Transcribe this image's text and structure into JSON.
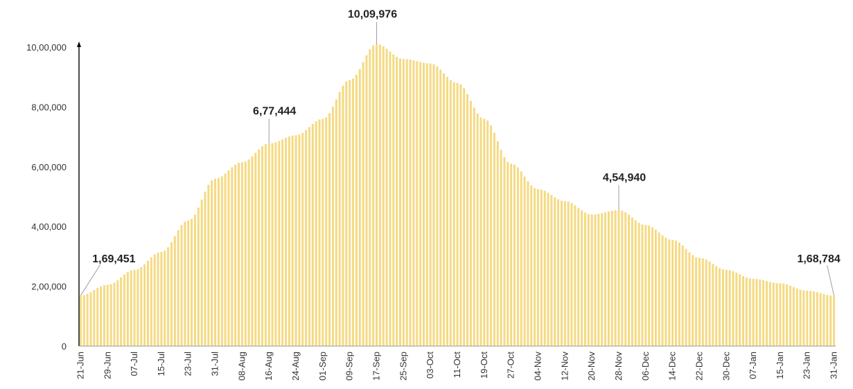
{
  "chart_data": {
    "type": "bar",
    "title": "",
    "xlabel": "",
    "ylabel": "",
    "ylim": [
      0,
      1000000
    ],
    "grid": false,
    "legend": "none",
    "colors": {
      "bar": "#F5DA83",
      "bar_edge": "#E8C65C",
      "axis": "#000000",
      "leader_line": "#9E9E9E"
    },
    "y_ticks": [
      {
        "value": 0,
        "label": "0"
      },
      {
        "value": 200000,
        "label": "2,00,000"
      },
      {
        "value": 400000,
        "label": "4,00,000"
      },
      {
        "value": 600000,
        "label": "6,00,000"
      },
      {
        "value": 800000,
        "label": "8,00,000"
      },
      {
        "value": 1000000,
        "label": "10,00,000"
      }
    ],
    "start_date": "21-Jun",
    "end_date": "31-Jan",
    "x_tick_labels": [
      "21-Jun",
      "29-Jun",
      "07-Jul",
      "15-Jul",
      "23-Jul",
      "31-Jul",
      "08-Aug",
      "16-Aug",
      "24-Aug",
      "01-Sep",
      "09-Sep",
      "17-Sep",
      "25-Sep",
      "03-Oct",
      "11-Oct",
      "19-Oct",
      "27-Oct",
      "04-Nov",
      "12-Nov",
      "20-Nov",
      "28-Nov",
      "06-Dec",
      "14-Dec",
      "22-Dec",
      "30-Dec",
      "07-Jan",
      "15-Jan",
      "23-Jan",
      "31-Jan"
    ],
    "profile": [
      {
        "date": "21-Jun",
        "value": 169451
      },
      {
        "date": "29-Jun",
        "value": 205000
      },
      {
        "date": "07-Jul",
        "value": 255000
      },
      {
        "date": "15-Jul",
        "value": 315000
      },
      {
        "date": "23-Jul",
        "value": 420000
      },
      {
        "date": "31-Jul",
        "value": 560000
      },
      {
        "date": "08-Aug",
        "value": 615000
      },
      {
        "date": "16-Aug",
        "value": 677444
      },
      {
        "date": "24-Aug",
        "value": 705000
      },
      {
        "date": "01-Sep",
        "value": 760000
      },
      {
        "date": "09-Sep",
        "value": 890000
      },
      {
        "date": "17-Sep",
        "value": 1009976
      },
      {
        "date": "25-Sep",
        "value": 960000
      },
      {
        "date": "03-Oct",
        "value": 945000
      },
      {
        "date": "11-Oct",
        "value": 880000
      },
      {
        "date": "19-Oct",
        "value": 760000
      },
      {
        "date": "27-Oct",
        "value": 610000
      },
      {
        "date": "04-Nov",
        "value": 525000
      },
      {
        "date": "12-Nov",
        "value": 485000
      },
      {
        "date": "20-Nov",
        "value": 440000
      },
      {
        "date": "28-Nov",
        "value": 454940
      },
      {
        "date": "06-Dec",
        "value": 405000
      },
      {
        "date": "14-Dec",
        "value": 355000
      },
      {
        "date": "22-Dec",
        "value": 295000
      },
      {
        "date": "30-Dec",
        "value": 255000
      },
      {
        "date": "07-Jan",
        "value": 225000
      },
      {
        "date": "15-Jan",
        "value": 210000
      },
      {
        "date": "23-Jan",
        "value": 185000
      },
      {
        "date": "31-Jan",
        "value": 168784
      }
    ],
    "annotations": [
      {
        "date": "21-Jun",
        "value": 169451,
        "label": "1,69,451"
      },
      {
        "date": "16-Aug",
        "value": 677444,
        "label": "6,77,444"
      },
      {
        "date": "17-Sep",
        "value": 1009976,
        "label": "10,09,976"
      },
      {
        "date": "28-Nov",
        "value": 454940,
        "label": "4,54,940"
      },
      {
        "date": "31-Jan",
        "value": 168784,
        "label": "1,68,784"
      }
    ]
  }
}
